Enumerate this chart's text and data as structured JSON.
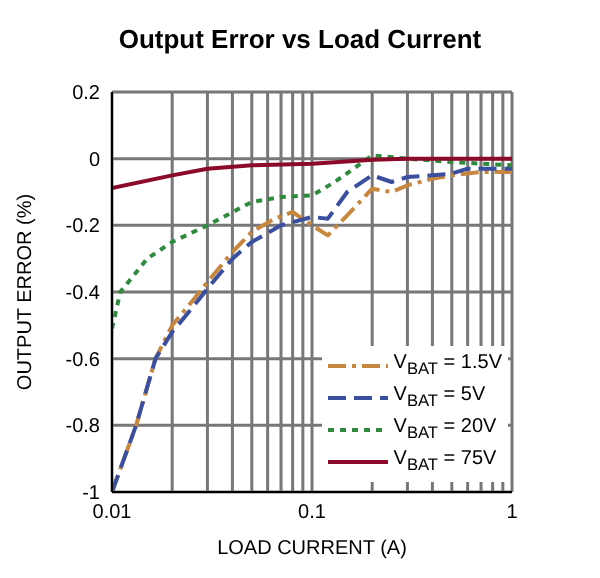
{
  "chart_data": {
    "type": "line",
    "title": "Output Error vs Load Current",
    "xlabel": "LOAD CURRENT (A)",
    "ylabel": "OUTPUT ERROR (%)",
    "log": "x",
    "xlim": [
      0.01,
      1
    ],
    "ylim": [
      -1.0,
      0.2
    ],
    "xticks": [
      0.01,
      {
        "value": 0.02,
        "label": null
      },
      {
        "value": 0.03,
        "label": null
      },
      {
        "value": 0.04,
        "label": null
      },
      {
        "value": 0.05,
        "label": null
      },
      {
        "value": 0.06,
        "label": null
      },
      {
        "value": 0.07,
        "label": null
      },
      {
        "value": 0.08,
        "label": null
      },
      {
        "value": 0.09,
        "label": null
      },
      0.1,
      {
        "value": 0.2,
        "label": null
      },
      {
        "value": 0.3,
        "label": null
      },
      {
        "value": 0.4,
        "label": null
      },
      {
        "value": 0.5,
        "label": null
      },
      {
        "value": 0.6,
        "label": null
      },
      {
        "value": 0.7,
        "label": null
      },
      {
        "value": 0.8,
        "label": null
      },
      {
        "value": 0.9,
        "label": null
      },
      1
    ],
    "yticks": [
      0.2,
      0,
      -0.2,
      -0.4,
      -0.6,
      -0.8,
      -1.0
    ],
    "grid": true,
    "legend": "bottom right",
    "marker": "none",
    "series": [
      {
        "name": "V$_{BAT}$ = 1.5V",
        "color": "#c8873e",
        "line_style": "dashdot",
        "x": [
          0.01,
          0.0132,
          0.0165,
          0.02,
          0.025,
          0.03,
          0.04,
          0.05,
          0.065,
          0.08,
          0.1,
          0.12,
          0.15,
          0.2,
          0.25,
          0.3,
          0.4,
          0.5,
          0.7,
          1
        ],
        "values": [
          -1.0,
          -0.8,
          -0.6,
          -0.5,
          -0.43,
          -0.37,
          -0.28,
          -0.22,
          -0.18,
          -0.16,
          -0.2,
          -0.23,
          -0.17,
          -0.09,
          -0.1,
          -0.08,
          -0.06,
          -0.05,
          -0.04,
          -0.04
        ]
      },
      {
        "name": "V$_{BAT}$ = 5V",
        "color": "#3a4fa0",
        "line_style": "dashed",
        "x": [
          0.01,
          0.0132,
          0.0165,
          0.02,
          0.025,
          0.03,
          0.04,
          0.05,
          0.07,
          0.1,
          0.12,
          0.15,
          0.2,
          0.25,
          0.3,
          0.4,
          0.5,
          0.6,
          1
        ],
        "values": [
          -1.0,
          -0.8,
          -0.6,
          -0.52,
          -0.45,
          -0.39,
          -0.3,
          -0.25,
          -0.2,
          -0.175,
          -0.18,
          -0.1,
          -0.05,
          -0.07,
          -0.055,
          -0.05,
          -0.045,
          -0.03,
          -0.03
        ]
      },
      {
        "name": "V$_{BAT}$ = 20V",
        "color": "#2e8b3e",
        "line_style": "dotted",
        "x": [
          0.01,
          0.011,
          0.015,
          0.02,
          0.03,
          0.05,
          0.07,
          0.1,
          0.13,
          0.2,
          0.3,
          0.5,
          1
        ],
        "values": [
          -0.51,
          -0.4,
          -0.3,
          -0.25,
          -0.2,
          -0.13,
          -0.115,
          -0.11,
          -0.07,
          0.01,
          0,
          -0.01,
          -0.02
        ]
      },
      {
        "name": "V$_{BAT}$ = 75V",
        "color": "#8b0a2a",
        "line_style": "solid",
        "x": [
          0.01,
          0.02,
          0.03,
          0.05,
          0.1,
          0.2,
          0.3,
          1
        ],
        "values": [
          -0.088,
          -0.05,
          -0.03,
          -0.02,
          -0.015,
          -0.003,
          0,
          0
        ]
      }
    ]
  }
}
